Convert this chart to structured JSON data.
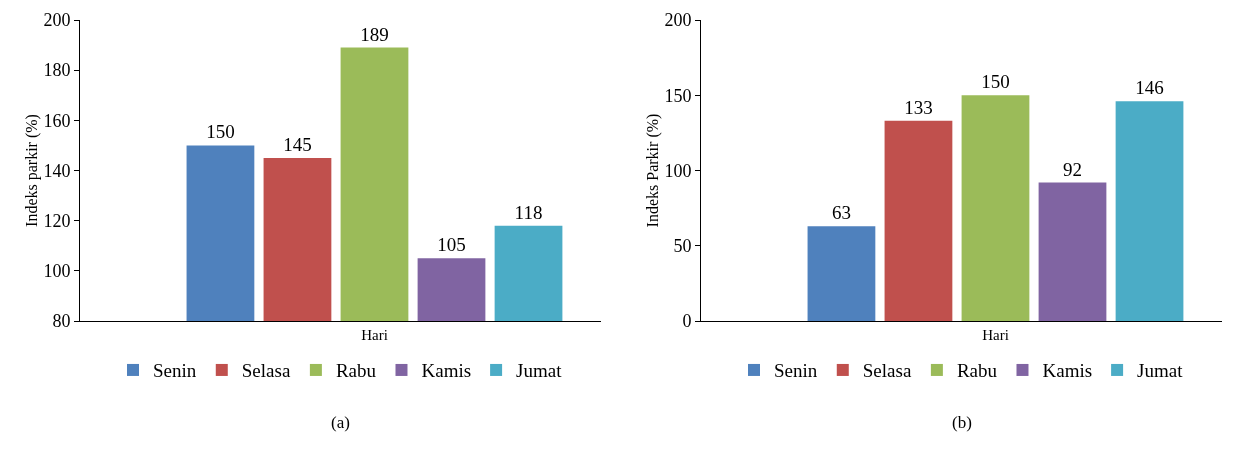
{
  "chart_data": [
    {
      "type": "bar",
      "ylabel": "Indeks parkir (%)",
      "categories": [
        "Hari"
      ],
      "ylim": [
        80,
        200
      ],
      "yticks": [
        80,
        100,
        120,
        140,
        160,
        180,
        200
      ],
      "grid": false,
      "legend": "bottom",
      "data_labels": true,
      "annotations": [
        "(a)"
      ],
      "series": [
        {
          "name": "Senin",
          "color": "#4f81bd",
          "values": [
            150
          ]
        },
        {
          "name": "Selasa",
          "color": "#c0504d",
          "values": [
            145
          ]
        },
        {
          "name": "Rabu",
          "color": "#9bbb59",
          "values": [
            189
          ]
        },
        {
          "name": "Kamis",
          "color": "#8064a2",
          "values": [
            105
          ]
        },
        {
          "name": "Jumat",
          "color": "#4bacc6",
          "values": [
            118
          ]
        }
      ]
    },
    {
      "type": "bar",
      "ylabel": "Indeks Parkir (%)",
      "categories": [
        "Hari"
      ],
      "ylim": [
        0,
        200
      ],
      "yticks": [
        0,
        50,
        100,
        150,
        200
      ],
      "grid": false,
      "legend": "bottom",
      "data_labels": true,
      "annotations": [
        "(b)"
      ],
      "series": [
        {
          "name": "Senin",
          "color": "#4f81bd",
          "values": [
            63
          ]
        },
        {
          "name": "Selasa",
          "color": "#c0504d",
          "values": [
            133
          ]
        },
        {
          "name": "Rabu",
          "color": "#9bbb59",
          "values": [
            150
          ]
        },
        {
          "name": "Kamis",
          "color": "#8064a2",
          "values": [
            92
          ]
        },
        {
          "name": "Jumat",
          "color": "#4bacc6",
          "values": [
            146
          ]
        }
      ]
    }
  ]
}
